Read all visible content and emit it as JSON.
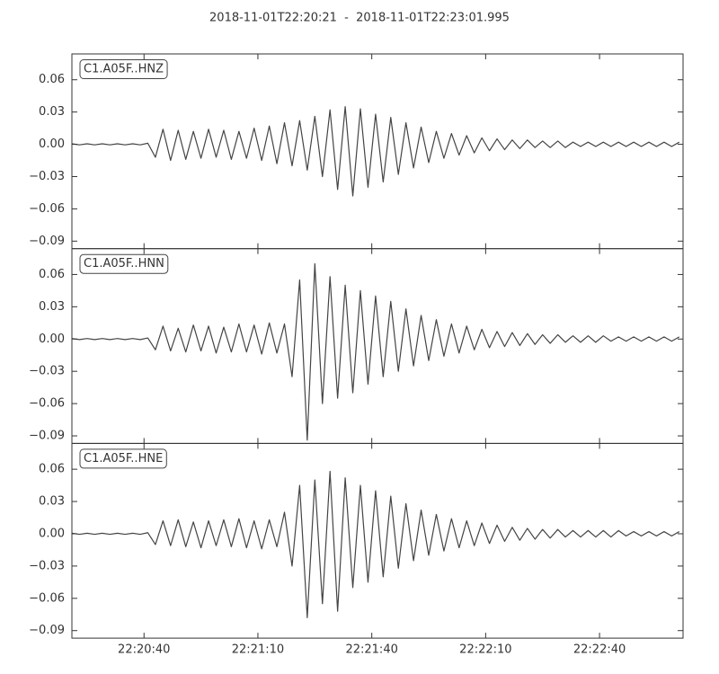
{
  "title": "2018-11-01T22:20:21  -  2018-11-01T22:23:01.995",
  "chart_data": [
    {
      "type": "line",
      "x": [
        "22:20:21",
        "22:20:23",
        "22:20:25",
        "22:20:27",
        "22:20:29",
        "22:20:31",
        "22:20:33",
        "22:20:35",
        "22:20:37",
        "22:20:39",
        "22:20:41",
        "22:20:43",
        "22:20:45",
        "22:20:47",
        "22:20:49",
        "22:20:51",
        "22:20:53",
        "22:20:55",
        "22:20:57",
        "22:20:59",
        "22:21:01",
        "22:21:03",
        "22:21:05",
        "22:21:07",
        "22:21:09",
        "22:21:11",
        "22:21:13",
        "22:21:15",
        "22:21:17",
        "22:21:19",
        "22:21:21",
        "22:21:23",
        "22:21:25",
        "22:21:27",
        "22:21:29",
        "22:21:31",
        "22:21:33",
        "22:21:35",
        "22:21:37",
        "22:21:39",
        "22:21:41",
        "22:21:43",
        "22:21:45",
        "22:21:47",
        "22:21:49",
        "22:21:51",
        "22:21:53",
        "22:21:55",
        "22:21:57",
        "22:21:59",
        "22:22:01",
        "22:22:03",
        "22:22:05",
        "22:22:07",
        "22:22:09",
        "22:22:11",
        "22:22:13",
        "22:22:15",
        "22:22:17",
        "22:22:19",
        "22:22:21",
        "22:22:23",
        "22:22:25",
        "22:22:27",
        "22:22:29",
        "22:22:31",
        "22:22:33",
        "22:22:35",
        "22:22:37",
        "22:22:39",
        "22:22:41",
        "22:22:43",
        "22:22:45",
        "22:22:47",
        "22:22:49",
        "22:22:51",
        "22:22:53",
        "22:22:55",
        "22:22:57",
        "22:22:59",
        "22:23:01"
      ],
      "series": [
        {
          "name": "C1.A05F..HNZ",
          "color": "#444444",
          "values": [
            0.0005,
            -0.0005,
            0.0005,
            -0.0005,
            0.0005,
            -0.0005,
            0.0005,
            -0.0005,
            0.0005,
            -0.0005,
            0.001,
            -0.012,
            0.014,
            -0.015,
            0.013,
            -0.014,
            0.012,
            -0.013,
            0.014,
            -0.012,
            0.013,
            -0.014,
            0.012,
            -0.013,
            0.015,
            -0.015,
            0.017,
            -0.018,
            0.02,
            -0.02,
            0.022,
            -0.024,
            0.026,
            -0.03,
            0.032,
            -0.042,
            0.035,
            -0.048,
            0.033,
            -0.04,
            0.028,
            -0.035,
            0.025,
            -0.028,
            0.02,
            -0.022,
            0.016,
            -0.017,
            0.012,
            -0.013,
            0.01,
            -0.01,
            0.008,
            -0.008,
            0.006,
            -0.006,
            0.005,
            -0.005,
            0.004,
            -0.004,
            0.004,
            -0.003,
            0.003,
            -0.003,
            0.003,
            -0.003,
            0.002,
            -0.002,
            0.002,
            -0.002,
            0.002,
            -0.002,
            0.002,
            -0.002,
            0.002,
            -0.002,
            0.002,
            -0.002,
            0.002,
            -0.002,
            0.002
          ]
        }
      ],
      "xlim": [
        "22:20:21",
        "22:23:02"
      ],
      "ylim": [
        -0.097,
        0.084
      ],
      "yticks": [
        {
          "value": -0.09,
          "label": "−0.09"
        },
        {
          "value": -0.06,
          "label": "−0.06"
        },
        {
          "value": -0.03,
          "label": "−0.03"
        },
        {
          "value": 0,
          "label": "0.00"
        },
        0.03,
        0.06
      ]
    },
    {
      "type": "line",
      "x": [
        "22:20:21",
        "22:20:23",
        "22:20:25",
        "22:20:27",
        "22:20:29",
        "22:20:31",
        "22:20:33",
        "22:20:35",
        "22:20:37",
        "22:20:39",
        "22:20:41",
        "22:20:43",
        "22:20:45",
        "22:20:47",
        "22:20:49",
        "22:20:51",
        "22:20:53",
        "22:20:55",
        "22:20:57",
        "22:20:59",
        "22:21:01",
        "22:21:03",
        "22:21:05",
        "22:21:07",
        "22:21:09",
        "22:21:11",
        "22:21:13",
        "22:21:15",
        "22:21:17",
        "22:21:19",
        "22:21:21",
        "22:21:23",
        "22:21:25",
        "22:21:27",
        "22:21:29",
        "22:21:31",
        "22:21:33",
        "22:21:35",
        "22:21:37",
        "22:21:39",
        "22:21:41",
        "22:21:43",
        "22:21:45",
        "22:21:47",
        "22:21:49",
        "22:21:51",
        "22:21:53",
        "22:21:55",
        "22:21:57",
        "22:21:59",
        "22:22:01",
        "22:22:03",
        "22:22:05",
        "22:22:07",
        "22:22:09",
        "22:22:11",
        "22:22:13",
        "22:22:15",
        "22:22:17",
        "22:22:19",
        "22:22:21",
        "22:22:23",
        "22:22:25",
        "22:22:27",
        "22:22:29",
        "22:22:31",
        "22:22:33",
        "22:22:35",
        "22:22:37",
        "22:22:39",
        "22:22:41",
        "22:22:43",
        "22:22:45",
        "22:22:47",
        "22:22:49",
        "22:22:51",
        "22:22:53",
        "22:22:55",
        "22:22:57",
        "22:22:59",
        "22:23:01"
      ],
      "series": [
        {
          "name": "C1.A05F..HNN",
          "color": "#444444",
          "values": [
            0.0005,
            -0.0005,
            0.0005,
            -0.0005,
            0.0005,
            -0.0005,
            0.0005,
            -0.0005,
            0.0005,
            -0.0005,
            0.001,
            -0.01,
            0.012,
            -0.011,
            0.01,
            -0.012,
            0.013,
            -0.011,
            0.012,
            -0.013,
            0.011,
            -0.012,
            0.014,
            -0.012,
            0.013,
            -0.014,
            0.015,
            -0.013,
            0.014,
            -0.035,
            0.055,
            -0.094,
            0.07,
            -0.06,
            0.058,
            -0.055,
            0.05,
            -0.05,
            0.045,
            -0.042,
            0.04,
            -0.035,
            0.035,
            -0.03,
            0.028,
            -0.025,
            0.022,
            -0.02,
            0.018,
            -0.016,
            0.014,
            -0.013,
            0.012,
            -0.01,
            0.009,
            -0.008,
            0.007,
            -0.007,
            0.006,
            -0.006,
            0.005,
            -0.005,
            0.004,
            -0.004,
            0.004,
            -0.003,
            0.003,
            -0.003,
            0.003,
            -0.003,
            0.003,
            -0.002,
            0.002,
            -0.002,
            0.002,
            -0.002,
            0.002,
            -0.002,
            0.002,
            -0.002,
            0.002
          ]
        }
      ],
      "xlim": [
        "22:20:21",
        "22:23:02"
      ],
      "ylim": [
        -0.097,
        0.084
      ],
      "yticks": [
        {
          "value": -0.09,
          "label": "−0.09"
        },
        {
          "value": -0.06,
          "label": "−0.06"
        },
        {
          "value": -0.03,
          "label": "−0.03"
        },
        {
          "value": 0,
          "label": "0.00"
        },
        0.03,
        0.06
      ]
    },
    {
      "type": "line",
      "x": [
        "22:20:21",
        "22:20:23",
        "22:20:25",
        "22:20:27",
        "22:20:29",
        "22:20:31",
        "22:20:33",
        "22:20:35",
        "22:20:37",
        "22:20:39",
        "22:20:41",
        "22:20:43",
        "22:20:45",
        "22:20:47",
        "22:20:49",
        "22:20:51",
        "22:20:53",
        "22:20:55",
        "22:20:57",
        "22:20:59",
        "22:21:01",
        "22:21:03",
        "22:21:05",
        "22:21:07",
        "22:21:09",
        "22:21:11",
        "22:21:13",
        "22:21:15",
        "22:21:17",
        "22:21:19",
        "22:21:21",
        "22:21:23",
        "22:21:25",
        "22:21:27",
        "22:21:29",
        "22:21:31",
        "22:21:33",
        "22:21:35",
        "22:21:37",
        "22:21:39",
        "22:21:41",
        "22:21:43",
        "22:21:45",
        "22:21:47",
        "22:21:49",
        "22:21:51",
        "22:21:53",
        "22:21:55",
        "22:21:57",
        "22:21:59",
        "22:22:01",
        "22:22:03",
        "22:22:05",
        "22:22:07",
        "22:22:09",
        "22:22:11",
        "22:22:13",
        "22:22:15",
        "22:22:17",
        "22:22:19",
        "22:22:21",
        "22:22:23",
        "22:22:25",
        "22:22:27",
        "22:22:29",
        "22:22:31",
        "22:22:33",
        "22:22:35",
        "22:22:37",
        "22:22:39",
        "22:22:41",
        "22:22:43",
        "22:22:45",
        "22:22:47",
        "22:22:49",
        "22:22:51",
        "22:22:53",
        "22:22:55",
        "22:22:57",
        "22:22:59",
        "22:23:01"
      ],
      "series": [
        {
          "name": "C1.A05F..HNE",
          "color": "#444444",
          "values": [
            0.0005,
            -0.0005,
            0.0005,
            -0.0005,
            0.0005,
            -0.0005,
            0.0005,
            -0.0005,
            0.0005,
            -0.0005,
            0.001,
            -0.01,
            0.012,
            -0.011,
            0.013,
            -0.012,
            0.011,
            -0.013,
            0.012,
            -0.011,
            0.013,
            -0.012,
            0.014,
            -0.013,
            0.012,
            -0.014,
            0.013,
            -0.012,
            0.02,
            -0.03,
            0.045,
            -0.078,
            0.05,
            -0.065,
            0.058,
            -0.072,
            0.052,
            -0.05,
            0.045,
            -0.045,
            0.04,
            -0.04,
            0.035,
            -0.032,
            0.028,
            -0.025,
            0.022,
            -0.02,
            0.018,
            -0.016,
            0.014,
            -0.013,
            0.012,
            -0.011,
            0.01,
            -0.009,
            0.008,
            -0.007,
            0.006,
            -0.006,
            0.005,
            -0.005,
            0.004,
            -0.004,
            0.004,
            -0.003,
            0.003,
            -0.003,
            0.003,
            -0.003,
            0.003,
            -0.003,
            0.003,
            -0.002,
            0.002,
            -0.002,
            0.002,
            -0.002,
            0.002,
            -0.002,
            0.002
          ]
        }
      ],
      "xlim": [
        "22:20:21",
        "22:23:02"
      ],
      "ylim": [
        -0.097,
        0.084
      ],
      "yticks": [
        {
          "value": -0.09,
          "label": "−0.09"
        },
        {
          "value": -0.06,
          "label": "−0.06"
        },
        {
          "value": -0.03,
          "label": "−0.03"
        },
        {
          "value": 0,
          "label": "0.00"
        },
        0.03,
        0.06
      ],
      "xticks": [
        "22:20:40",
        "22:21:10",
        "22:21:40",
        "22:22:10",
        "22:22:40"
      ]
    }
  ]
}
